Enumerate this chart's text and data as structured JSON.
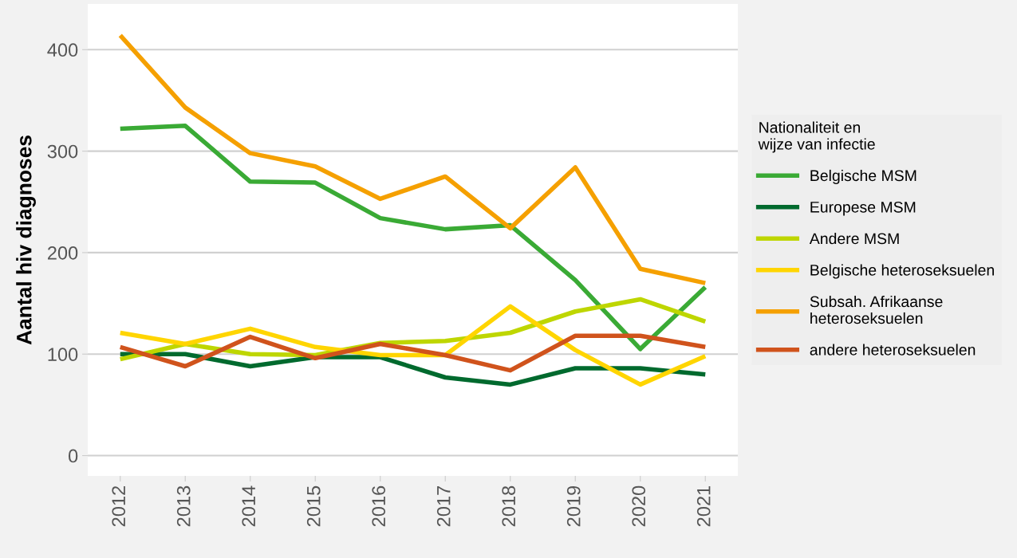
{
  "chart_data": {
    "type": "line",
    "ylabel": "Aantal hiv diagnoses",
    "legend_title": "Nationaliteit en\nwijze van infectie",
    "x": [
      2012,
      2013,
      2014,
      2015,
      2016,
      2017,
      2018,
      2019,
      2020,
      2021
    ],
    "xlim": [
      2011.5,
      2021.5
    ],
    "xticks": [
      2012,
      2013,
      2014,
      2015,
      2016,
      2017,
      2018,
      2019,
      2020,
      2021
    ],
    "ylim": [
      -20,
      445
    ],
    "yticks": [
      0,
      100,
      200,
      300,
      400
    ],
    "grid": "y",
    "legend": "right",
    "line_style": "solid",
    "marker": "none",
    "series": [
      {
        "name": "Belgische MSM",
        "color": "#3aaa35",
        "values": [
          322,
          325,
          270,
          269,
          234,
          223,
          227,
          173,
          105,
          166
        ]
      },
      {
        "name": "Europese MSM",
        "color": "#006a2e",
        "values": [
          100,
          100,
          88,
          97,
          97,
          77,
          70,
          86,
          86,
          80
        ]
      },
      {
        "name": "Andere MSM",
        "color": "#bed600",
        "values": [
          95,
          110,
          100,
          99,
          111,
          113,
          121,
          142,
          154,
          132
        ]
      },
      {
        "name": "Belgische heteroseksuelen",
        "color": "#ffd500",
        "values": [
          121,
          110,
          125,
          107,
          99,
          99,
          147,
          104,
          70,
          98
        ]
      },
      {
        "name": "Subsah. Afrikaanse\nheteroseksuelen",
        "color": "#f5a000",
        "values": [
          414,
          343,
          298,
          285,
          253,
          275,
          224,
          284,
          184,
          170
        ]
      },
      {
        "name": "andere heteroseksuelen",
        "color": "#d0531c",
        "values": [
          107,
          88,
          117,
          96,
          110,
          99,
          84,
          118,
          118,
          107
        ]
      }
    ]
  }
}
